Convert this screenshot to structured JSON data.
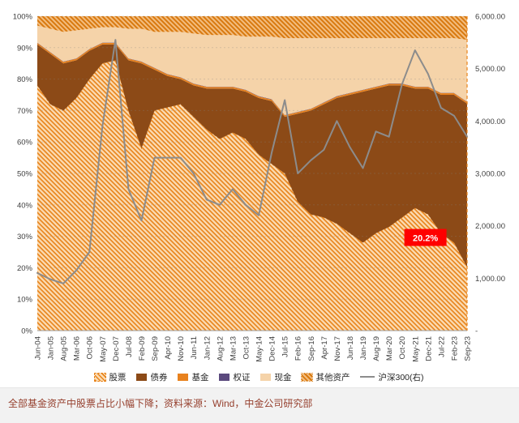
{
  "page": {
    "caption": "全部基金资产中股票占比小幅下降；资料来源：Wind，中金公司研究部"
  },
  "chart_data": {
    "type": "area",
    "stacked": true,
    "title": "",
    "xlabel": "",
    "ylabel": "",
    "x_labels": [
      "Jun-04",
      "Jan-05",
      "Aug-05",
      "Mar-06",
      "Oct-06",
      "May-07",
      "Dec-07",
      "Jul-08",
      "Feb-09",
      "Sep-09",
      "Apr-10",
      "Nov-10",
      "Jun-11",
      "Jan-12",
      "Aug-12",
      "Mar-13",
      "Oct-13",
      "May-14",
      "Dec-14",
      "Jul-15",
      "Feb-16",
      "Sep-16",
      "Apr-17",
      "Nov-17",
      "Jun-18",
      "Jan-19",
      "Aug-19",
      "Mar-20",
      "Oct-20",
      "May-21",
      "Dec-21",
      "Jul-22",
      "Feb-23",
      "Sep-23"
    ],
    "series": [
      {
        "name": "股票",
        "fill": "hatch-orange",
        "values": [
          78,
          72,
          70,
          74,
          80,
          85,
          86,
          70,
          58,
          70,
          71,
          72,
          68,
          64,
          61,
          63,
          61,
          56,
          53,
          50,
          41,
          37,
          36,
          34,
          31,
          28,
          31,
          33,
          36,
          39,
          37,
          31,
          28,
          20.2
        ]
      },
      {
        "name": "债券",
        "fill": "#8c4a17",
        "values": [
          13,
          16,
          15,
          12,
          9,
          6,
          5,
          16,
          27,
          13,
          10,
          8,
          10,
          13,
          16,
          14,
          15,
          18,
          20,
          18,
          28,
          33,
          36,
          40,
          44,
          48,
          46,
          45,
          42,
          38,
          40,
          44,
          47,
          52
        ]
      },
      {
        "name": "基金",
        "fill": "#e8821e",
        "values": [
          0.5,
          0.5,
          0.5,
          0.5,
          0.5,
          0.5,
          0.5,
          0.5,
          0.5,
          0.5,
          0.5,
          0.5,
          0.5,
          0.5,
          0.5,
          0.5,
          0.5,
          0.5,
          0.5,
          0.5,
          0.5,
          0.5,
          0.5,
          0.5,
          0.5,
          0.5,
          0.5,
          0.5,
          0.5,
          0.5,
          0.5,
          0.5,
          0.5,
          0.5
        ]
      },
      {
        "name": "权证",
        "fill": "#5b4a7e",
        "values": [
          0.1,
          0.1,
          0.1,
          0.1,
          0.1,
          0.1,
          0.1,
          0.1,
          0.1,
          0.1,
          0.1,
          0.1,
          0.1,
          0.1,
          0.1,
          0.1,
          0.1,
          0.1,
          0.1,
          0.1,
          0.1,
          0.1,
          0.1,
          0.1,
          0.1,
          0.1,
          0.1,
          0.1,
          0.1,
          0.1,
          0.1,
          0.1,
          0.1,
          0.1
        ]
      },
      {
        "name": "现金",
        "fill": "#f5d3a9",
        "values": [
          5.4,
          7.4,
          9.4,
          8.9,
          6.4,
          4.9,
          4.9,
          9.4,
          10.4,
          11.4,
          13.4,
          14.4,
          15.9,
          16.4,
          16.4,
          16.4,
          16.9,
          18.9,
          19.9,
          24.4,
          23.4,
          22.4,
          20.4,
          18.4,
          17.4,
          16.4,
          15.4,
          14.4,
          14.4,
          15.4,
          15.4,
          17.4,
          17.4,
          19.7
        ]
      },
      {
        "name": "其他资产",
        "fill": "hatch-orange-dark",
        "values": [
          3,
          4,
          5,
          4.5,
          4,
          3.5,
          3.5,
          4,
          4,
          5,
          5,
          5,
          5.5,
          6,
          6,
          6,
          6.5,
          6.5,
          6.5,
          7,
          7,
          7,
          7,
          7,
          7,
          7,
          7,
          7,
          7,
          7,
          7,
          7,
          7,
          7.5
        ]
      }
    ],
    "line_series": {
      "name": "沪深300(右)",
      "axis": "right",
      "color": "#8c8c8c",
      "values": [
        1100,
        980,
        900,
        1150,
        1500,
        3900,
        5550,
        2700,
        2100,
        3300,
        3300,
        3300,
        3000,
        2500,
        2400,
        2700,
        2400,
        2200,
        3400,
        4400,
        3000,
        3250,
        3450,
        4000,
        3500,
        3100,
        3800,
        3700,
        4700,
        5350,
        4900,
        4250,
        4100,
        3700
      ]
    },
    "y_left": {
      "min": 0,
      "max": 100,
      "ticks": [
        "0%",
        "10%",
        "20%",
        "30%",
        "40%",
        "50%",
        "60%",
        "70%",
        "80%",
        "90%",
        "100%"
      ]
    },
    "y_right": {
      "min": 0,
      "max": 6000,
      "ticks": [
        "-",
        "1,000.00",
        "2,000.00",
        "3,000.00",
        "4,000.00",
        "5,000.00",
        "6,000.00"
      ]
    },
    "annotation": {
      "label": "20.2%",
      "bg": "#ff0000",
      "text_color": "#ffffff",
      "x_index": 29.8,
      "y_percent": 29.5
    },
    "legend": [
      {
        "label": "股票",
        "swatch": "hatch-orange"
      },
      {
        "label": "债券",
        "swatch": "#8c4a17"
      },
      {
        "label": "基金",
        "swatch": "#e8821e"
      },
      {
        "label": "权证",
        "swatch": "#5b4a7e"
      },
      {
        "label": "现金",
        "swatch": "#f5d3a9"
      },
      {
        "label": "其他资产",
        "swatch": "hatch-orange-dark"
      },
      {
        "label": "沪深300(右)",
        "swatch": "line-gray"
      }
    ],
    "legend_position": "bottom",
    "grid": true
  }
}
